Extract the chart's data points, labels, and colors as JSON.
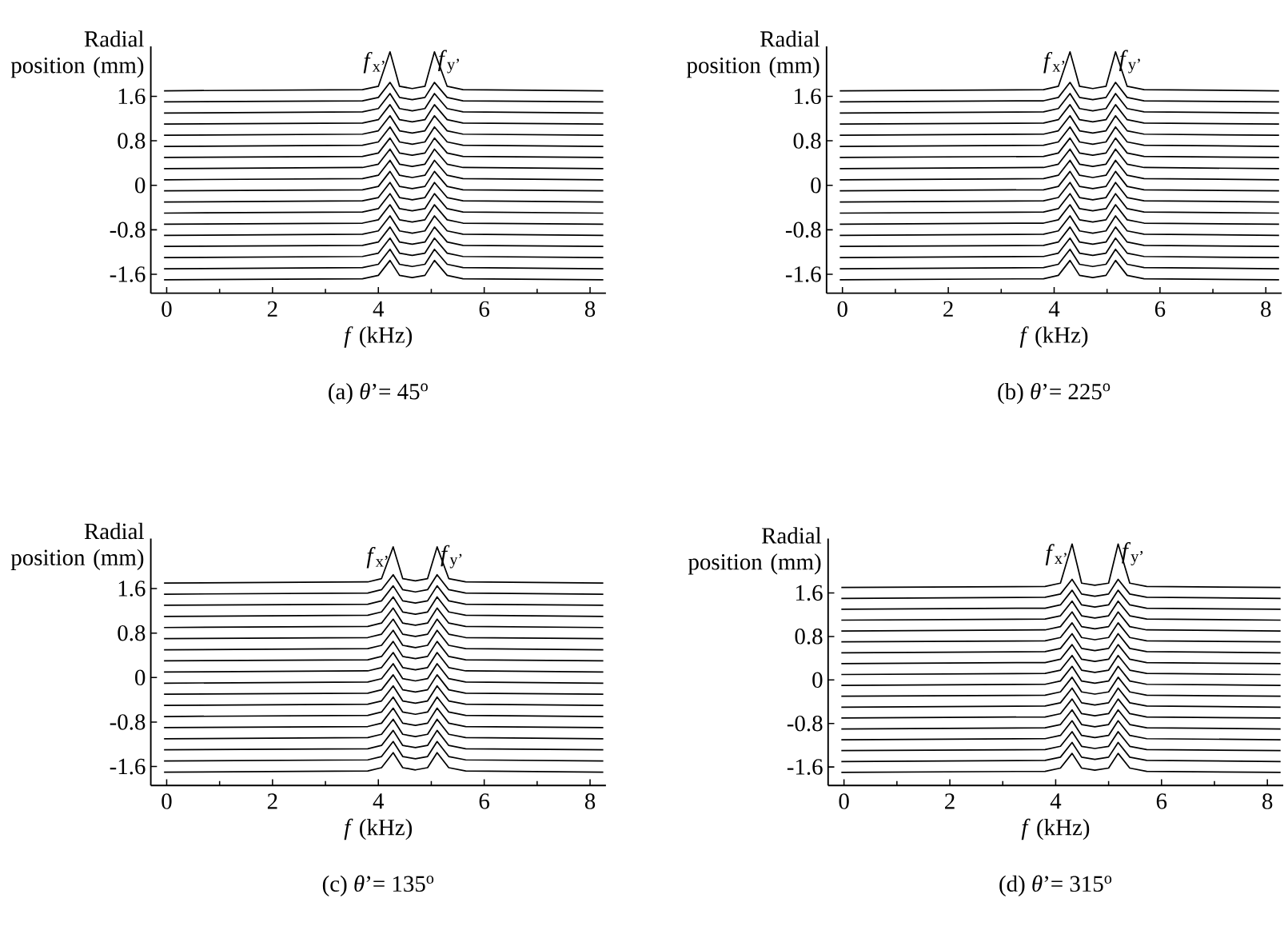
{
  "chart_data": [
    {
      "type": "line",
      "xlabel": "*f* (kHz)",
      "ylabel": "Radial position (mm)",
      "subtitle": "(a) *θ*’= 45$^{o}$",
      "color": "#000000",
      "xlim": [
        -0.3,
        8.3
      ],
      "ylim": [
        -1.94,
        2.5
      ],
      "xticks": [
        0,
        2,
        4,
        6,
        8
      ],
      "yticks": [
        -1.6,
        -0.8,
        0,
        0.8,
        1.6
      ],
      "annotations": [
        {
          "text": "*f*$_{x’}$",
          "x": 4.22,
          "y": 2.4
        },
        {
          "text": "*f*$_{y’}$",
          "x": 5.06,
          "y": 2.4
        }
      ],
      "x": [
        -0.05,
        3.7,
        4.0,
        4.22,
        4.4,
        4.64,
        4.88,
        5.06,
        5.3,
        5.6,
        8.25
      ],
      "series": [
        {
          "values": [
            -1.7,
            -1.68,
            -1.62,
            -1.35,
            -1.62,
            -1.66,
            -1.62,
            -1.35,
            -1.62,
            -1.68,
            -1.7
          ]
        },
        {
          "values": [
            -1.5,
            -1.48,
            -1.42,
            -1.15,
            -1.42,
            -1.46,
            -1.42,
            -1.15,
            -1.42,
            -1.48,
            -1.5
          ]
        },
        {
          "values": [
            -1.3,
            -1.28,
            -1.22,
            -0.95,
            -1.22,
            -1.26,
            -1.22,
            -0.95,
            -1.22,
            -1.28,
            -1.3
          ]
        },
        {
          "values": [
            -1.1,
            -1.08,
            -1.02,
            -0.75,
            -1.02,
            -1.06,
            -1.02,
            -0.75,
            -1.02,
            -1.08,
            -1.1
          ]
        },
        {
          "values": [
            -0.9,
            -0.88,
            -0.82,
            -0.55,
            -0.82,
            -0.86,
            -0.82,
            -0.55,
            -0.82,
            -0.88,
            -0.9
          ]
        },
        {
          "values": [
            -0.7,
            -0.68,
            -0.62,
            -0.35,
            -0.62,
            -0.66,
            -0.62,
            -0.35,
            -0.62,
            -0.68,
            -0.7
          ]
        },
        {
          "values": [
            -0.5,
            -0.48,
            -0.42,
            -0.15,
            -0.42,
            -0.46,
            -0.42,
            -0.15,
            -0.42,
            -0.48,
            -0.5
          ]
        },
        {
          "values": [
            -0.3,
            -0.28,
            -0.22,
            0.05,
            -0.22,
            -0.26,
            -0.22,
            0.05,
            -0.22,
            -0.28,
            -0.3
          ]
        },
        {
          "values": [
            -0.1,
            -0.08,
            -0.02,
            0.25,
            -0.02,
            -0.06,
            -0.02,
            0.25,
            -0.02,
            -0.08,
            -0.1
          ]
        },
        {
          "values": [
            0.1,
            0.12,
            0.18,
            0.45,
            0.18,
            0.14,
            0.18,
            0.45,
            0.18,
            0.12,
            0.1
          ]
        },
        {
          "values": [
            0.3,
            0.32,
            0.38,
            0.65,
            0.38,
            0.34,
            0.38,
            0.65,
            0.38,
            0.32,
            0.3
          ]
        },
        {
          "values": [
            0.5,
            0.52,
            0.58,
            0.85,
            0.58,
            0.54,
            0.58,
            0.85,
            0.58,
            0.52,
            0.5
          ]
        },
        {
          "values": [
            0.7,
            0.72,
            0.78,
            1.05,
            0.78,
            0.74,
            0.78,
            1.05,
            0.78,
            0.72,
            0.7
          ]
        },
        {
          "values": [
            0.9,
            0.92,
            0.98,
            1.25,
            0.98,
            0.94,
            0.98,
            1.25,
            0.98,
            0.92,
            0.9
          ]
        },
        {
          "values": [
            1.1,
            1.12,
            1.18,
            1.45,
            1.18,
            1.14,
            1.18,
            1.45,
            1.18,
            1.12,
            1.1
          ]
        },
        {
          "values": [
            1.3,
            1.32,
            1.38,
            1.65,
            1.38,
            1.34,
            1.38,
            1.65,
            1.38,
            1.32,
            1.3
          ]
        },
        {
          "values": [
            1.5,
            1.52,
            1.58,
            1.85,
            1.58,
            1.54,
            1.58,
            1.85,
            1.58,
            1.52,
            1.5
          ]
        },
        {
          "values": [
            1.7,
            1.72,
            1.78,
            2.4,
            1.78,
            1.74,
            1.78,
            2.4,
            1.78,
            1.72,
            1.7
          ]
        }
      ]
    },
    {
      "type": "line",
      "xlabel": "*f* (kHz)",
      "ylabel": "Radial position (mm)",
      "subtitle": "(b) *θ*’= 225$^{o}$",
      "color": "#000000",
      "xlim": [
        -0.3,
        8.3
      ],
      "ylim": [
        -1.94,
        2.5
      ],
      "xticks": [
        0,
        2,
        4,
        6,
        8
      ],
      "yticks": [
        -1.6,
        -0.8,
        0,
        0.8,
        1.6
      ],
      "annotations": [
        {
          "text": "*f*$_{x’}$",
          "x": 4.3,
          "y": 2.4
        },
        {
          "text": "*f*$_{y’}$",
          "x": 5.16,
          "y": 2.4
        }
      ],
      "x": [
        -0.05,
        3.8,
        4.08,
        4.3,
        4.48,
        4.73,
        4.98,
        5.16,
        5.38,
        5.7,
        8.25
      ],
      "series": [
        {
          "values": [
            -1.7,
            -1.68,
            -1.62,
            -1.35,
            -1.62,
            -1.66,
            -1.62,
            -1.35,
            -1.62,
            -1.68,
            -1.7
          ]
        },
        {
          "values": [
            -1.5,
            -1.48,
            -1.42,
            -1.15,
            -1.42,
            -1.46,
            -1.42,
            -1.15,
            -1.42,
            -1.48,
            -1.5
          ]
        },
        {
          "values": [
            -1.3,
            -1.28,
            -1.22,
            -0.95,
            -1.22,
            -1.26,
            -1.22,
            -0.95,
            -1.22,
            -1.28,
            -1.3
          ]
        },
        {
          "values": [
            -1.1,
            -1.08,
            -1.02,
            -0.75,
            -1.02,
            -1.06,
            -1.02,
            -0.75,
            -1.02,
            -1.08,
            -1.1
          ]
        },
        {
          "values": [
            -0.9,
            -0.88,
            -0.82,
            -0.55,
            -0.82,
            -0.86,
            -0.82,
            -0.55,
            -0.82,
            -0.88,
            -0.9
          ]
        },
        {
          "values": [
            -0.7,
            -0.68,
            -0.62,
            -0.35,
            -0.62,
            -0.66,
            -0.62,
            -0.35,
            -0.62,
            -0.68,
            -0.7
          ]
        },
        {
          "values": [
            -0.5,
            -0.48,
            -0.42,
            -0.15,
            -0.42,
            -0.46,
            -0.42,
            -0.15,
            -0.42,
            -0.48,
            -0.5
          ]
        },
        {
          "values": [
            -0.3,
            -0.28,
            -0.22,
            0.05,
            -0.22,
            -0.26,
            -0.22,
            0.05,
            -0.22,
            -0.28,
            -0.3
          ]
        },
        {
          "values": [
            -0.1,
            -0.08,
            -0.02,
            0.25,
            -0.02,
            -0.06,
            -0.02,
            0.25,
            -0.02,
            -0.08,
            -0.1
          ]
        },
        {
          "values": [
            0.1,
            0.12,
            0.18,
            0.45,
            0.18,
            0.14,
            0.18,
            0.45,
            0.18,
            0.12,
            0.1
          ]
        },
        {
          "values": [
            0.3,
            0.32,
            0.38,
            0.65,
            0.38,
            0.34,
            0.38,
            0.65,
            0.38,
            0.32,
            0.3
          ]
        },
        {
          "values": [
            0.5,
            0.52,
            0.58,
            0.85,
            0.58,
            0.54,
            0.58,
            0.85,
            0.58,
            0.52,
            0.5
          ]
        },
        {
          "values": [
            0.7,
            0.72,
            0.78,
            1.05,
            0.78,
            0.74,
            0.78,
            1.05,
            0.78,
            0.72,
            0.7
          ]
        },
        {
          "values": [
            0.9,
            0.92,
            0.98,
            1.25,
            0.98,
            0.94,
            0.98,
            1.25,
            0.98,
            0.92,
            0.9
          ]
        },
        {
          "values": [
            1.1,
            1.12,
            1.18,
            1.45,
            1.18,
            1.14,
            1.18,
            1.45,
            1.18,
            1.12,
            1.1
          ]
        },
        {
          "values": [
            1.3,
            1.32,
            1.38,
            1.65,
            1.38,
            1.34,
            1.38,
            1.65,
            1.38,
            1.32,
            1.3
          ]
        },
        {
          "values": [
            1.5,
            1.52,
            1.58,
            1.85,
            1.58,
            1.54,
            1.58,
            1.85,
            1.58,
            1.52,
            1.5
          ]
        },
        {
          "values": [
            1.7,
            1.72,
            1.78,
            2.4,
            1.78,
            1.74,
            1.78,
            2.4,
            1.78,
            1.72,
            1.7
          ]
        }
      ]
    },
    {
      "type": "line",
      "xlabel": "*f* (kHz)",
      "ylabel": "Radial position (mm)",
      "subtitle": "(c) *θ*’= 135$^{o}$",
      "color": "#000000",
      "xlim": [
        -0.3,
        8.3
      ],
      "ylim": [
        -1.94,
        2.5
      ],
      "xticks": [
        0,
        2,
        4,
        6,
        8
      ],
      "yticks": [
        -1.6,
        -0.8,
        0,
        0.8,
        1.6
      ],
      "annotations": [
        {
          "text": "*f*$_{x’}$",
          "x": 4.28,
          "y": 2.35
        },
        {
          "text": "*f*$_{y’}$",
          "x": 5.11,
          "y": 2.35
        }
      ],
      "x": [
        -0.05,
        3.8,
        4.06,
        4.28,
        4.46,
        4.7,
        4.93,
        5.11,
        5.33,
        5.65,
        8.25
      ],
      "series": [
        {
          "values": [
            -1.7,
            -1.68,
            -1.62,
            -1.35,
            -1.62,
            -1.66,
            -1.62,
            -1.35,
            -1.62,
            -1.68,
            -1.7
          ]
        },
        {
          "values": [
            -1.5,
            -1.48,
            -1.42,
            -1.15,
            -1.42,
            -1.46,
            -1.42,
            -1.15,
            -1.42,
            -1.48,
            -1.5
          ]
        },
        {
          "values": [
            -1.3,
            -1.28,
            -1.22,
            -0.95,
            -1.22,
            -1.26,
            -1.22,
            -0.95,
            -1.22,
            -1.28,
            -1.3
          ]
        },
        {
          "values": [
            -1.1,
            -1.08,
            -1.02,
            -0.75,
            -1.02,
            -1.06,
            -1.02,
            -0.75,
            -1.02,
            -1.08,
            -1.1
          ]
        },
        {
          "values": [
            -0.9,
            -0.88,
            -0.82,
            -0.55,
            -0.82,
            -0.86,
            -0.82,
            -0.55,
            -0.82,
            -0.88,
            -0.9
          ]
        },
        {
          "values": [
            -0.7,
            -0.68,
            -0.62,
            -0.35,
            -0.62,
            -0.66,
            -0.62,
            -0.35,
            -0.62,
            -0.68,
            -0.7
          ]
        },
        {
          "values": [
            -0.5,
            -0.48,
            -0.42,
            -0.15,
            -0.42,
            -0.46,
            -0.42,
            -0.15,
            -0.42,
            -0.48,
            -0.5
          ]
        },
        {
          "values": [
            -0.3,
            -0.28,
            -0.22,
            0.05,
            -0.22,
            -0.26,
            -0.22,
            0.05,
            -0.22,
            -0.28,
            -0.3
          ]
        },
        {
          "values": [
            -0.1,
            -0.08,
            -0.02,
            0.25,
            -0.02,
            -0.06,
            -0.02,
            0.25,
            -0.02,
            -0.08,
            -0.1
          ]
        },
        {
          "values": [
            0.1,
            0.12,
            0.18,
            0.45,
            0.18,
            0.14,
            0.18,
            0.45,
            0.18,
            0.12,
            0.1
          ]
        },
        {
          "values": [
            0.3,
            0.32,
            0.38,
            0.65,
            0.38,
            0.34,
            0.38,
            0.65,
            0.38,
            0.32,
            0.3
          ]
        },
        {
          "values": [
            0.5,
            0.52,
            0.58,
            0.85,
            0.58,
            0.54,
            0.58,
            0.85,
            0.58,
            0.52,
            0.5
          ]
        },
        {
          "values": [
            0.7,
            0.72,
            0.78,
            1.05,
            0.78,
            0.74,
            0.78,
            1.05,
            0.78,
            0.72,
            0.7
          ]
        },
        {
          "values": [
            0.9,
            0.92,
            0.98,
            1.25,
            0.98,
            0.94,
            0.98,
            1.25,
            0.98,
            0.92,
            0.9
          ]
        },
        {
          "values": [
            1.1,
            1.12,
            1.18,
            1.45,
            1.18,
            1.14,
            1.18,
            1.45,
            1.18,
            1.12,
            1.1
          ]
        },
        {
          "values": [
            1.3,
            1.32,
            1.38,
            1.65,
            1.38,
            1.34,
            1.38,
            1.65,
            1.38,
            1.32,
            1.3
          ]
        },
        {
          "values": [
            1.5,
            1.52,
            1.58,
            1.85,
            1.58,
            1.54,
            1.58,
            1.85,
            1.58,
            1.52,
            1.5
          ]
        },
        {
          "values": [
            1.7,
            1.72,
            1.78,
            2.35,
            1.78,
            1.74,
            1.78,
            2.35,
            1.78,
            1.72,
            1.7
          ]
        }
      ]
    },
    {
      "type": "line",
      "xlabel": "*f* (kHz)",
      "ylabel": "Radial position (mm)",
      "subtitle": "(d) *θ*’= 315$^{o}$",
      "color": "#000000",
      "xlim": [
        -0.3,
        8.3
      ],
      "ylim": [
        -1.94,
        2.6
      ],
      "xticks": [
        0,
        2,
        4,
        6,
        8
      ],
      "yticks": [
        -1.6,
        -0.8,
        0,
        0.8,
        1.6
      ],
      "annotations": [
        {
          "text": "*f*$_{x’}$",
          "x": 4.31,
          "y": 2.5
        },
        {
          "text": "*f*$_{y’}$",
          "x": 5.18,
          "y": 2.5
        }
      ],
      "x": [
        -0.05,
        3.8,
        4.09,
        4.31,
        4.49,
        4.74,
        5.0,
        5.18,
        5.4,
        5.72,
        8.25
      ],
      "series": [
        {
          "values": [
            -1.7,
            -1.68,
            -1.62,
            -1.35,
            -1.62,
            -1.66,
            -1.62,
            -1.35,
            -1.62,
            -1.68,
            -1.7
          ]
        },
        {
          "values": [
            -1.5,
            -1.48,
            -1.42,
            -1.15,
            -1.42,
            -1.46,
            -1.42,
            -1.15,
            -1.42,
            -1.48,
            -1.5
          ]
        },
        {
          "values": [
            -1.3,
            -1.28,
            -1.22,
            -0.95,
            -1.22,
            -1.26,
            -1.22,
            -0.95,
            -1.22,
            -1.28,
            -1.3
          ]
        },
        {
          "values": [
            -1.1,
            -1.08,
            -1.02,
            -0.75,
            -1.02,
            -1.06,
            -1.02,
            -0.75,
            -1.02,
            -1.08,
            -1.1
          ]
        },
        {
          "values": [
            -0.9,
            -0.88,
            -0.82,
            -0.55,
            -0.82,
            -0.86,
            -0.82,
            -0.55,
            -0.82,
            -0.88,
            -0.9
          ]
        },
        {
          "values": [
            -0.7,
            -0.68,
            -0.62,
            -0.35,
            -0.62,
            -0.66,
            -0.62,
            -0.35,
            -0.62,
            -0.68,
            -0.7
          ]
        },
        {
          "values": [
            -0.5,
            -0.48,
            -0.42,
            -0.15,
            -0.42,
            -0.46,
            -0.42,
            -0.15,
            -0.42,
            -0.48,
            -0.5
          ]
        },
        {
          "values": [
            -0.3,
            -0.28,
            -0.22,
            0.05,
            -0.22,
            -0.26,
            -0.22,
            0.05,
            -0.22,
            -0.28,
            -0.3
          ]
        },
        {
          "values": [
            -0.1,
            -0.08,
            -0.02,
            0.25,
            -0.02,
            -0.06,
            -0.02,
            0.25,
            -0.02,
            -0.08,
            -0.1
          ]
        },
        {
          "values": [
            0.1,
            0.12,
            0.18,
            0.45,
            0.18,
            0.14,
            0.18,
            0.45,
            0.18,
            0.12,
            0.1
          ]
        },
        {
          "values": [
            0.3,
            0.32,
            0.38,
            0.65,
            0.38,
            0.34,
            0.38,
            0.65,
            0.38,
            0.32,
            0.3
          ]
        },
        {
          "values": [
            0.5,
            0.52,
            0.58,
            0.85,
            0.58,
            0.54,
            0.58,
            0.85,
            0.58,
            0.52,
            0.5
          ]
        },
        {
          "values": [
            0.7,
            0.72,
            0.78,
            1.05,
            0.78,
            0.74,
            0.78,
            1.05,
            0.78,
            0.72,
            0.7
          ]
        },
        {
          "values": [
            0.9,
            0.92,
            0.98,
            1.25,
            0.98,
            0.94,
            0.98,
            1.25,
            0.98,
            0.92,
            0.9
          ]
        },
        {
          "values": [
            1.1,
            1.12,
            1.18,
            1.45,
            1.18,
            1.14,
            1.18,
            1.45,
            1.18,
            1.12,
            1.1
          ]
        },
        {
          "values": [
            1.3,
            1.32,
            1.38,
            1.65,
            1.38,
            1.34,
            1.38,
            1.65,
            1.38,
            1.32,
            1.3
          ]
        },
        {
          "values": [
            1.5,
            1.52,
            1.58,
            1.85,
            1.58,
            1.54,
            1.58,
            1.85,
            1.58,
            1.52,
            1.5
          ]
        },
        {
          "values": [
            1.7,
            1.72,
            1.78,
            2.5,
            1.78,
            1.74,
            1.78,
            2.5,
            1.78,
            1.72,
            1.7
          ]
        }
      ]
    }
  ]
}
